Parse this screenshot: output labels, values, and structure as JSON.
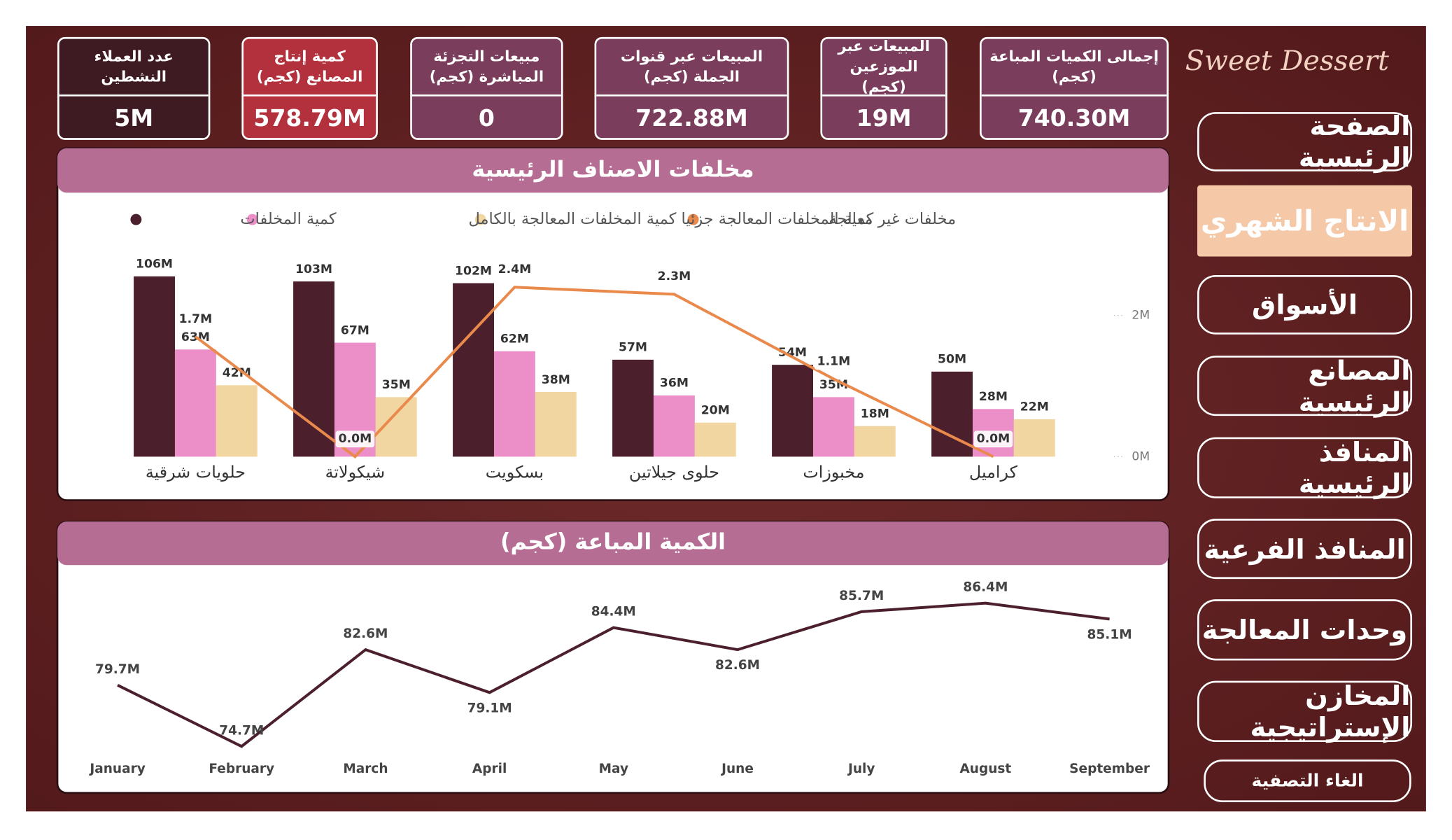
{
  "brand": "Sweet Dessert",
  "nav": [
    "الصفحة الرئيسية",
    "الانتاج الشهري",
    "الأسواق",
    "المصانع الرئيسية",
    "المنافذ الرئيسية",
    "المنافذ الفرعية",
    "وحدات المعالجة",
    "المخازن الإستراتيجية",
    "الغاء التصفية"
  ],
  "kpis": [
    {
      "label": "إجمالى الكميات المباعة (كجم)",
      "value": "740.30M",
      "color": "#7a3d5c"
    },
    {
      "label": "المبيعات عبر الموزعين (كجم)",
      "value": "19M",
      "color": "#7a3d5c"
    },
    {
      "label": "المبيعات عبر قنوات الجملة (كجم)",
      "value": "722.88M",
      "color": "#7a3d5c"
    },
    {
      "label": "مبيعات التجزئة المباشرة (كجم)",
      "value": "0",
      "color": "#7a3d5c"
    },
    {
      "label": "كمية إنتاج المصانع (كجم)",
      "value": "578.79M",
      "color": "#b3303d"
    },
    {
      "label": "عدد العملاء النشطين",
      "value": "5M",
      "color": "#3e1a23"
    }
  ],
  "chart_data": [
    {
      "type": "bar",
      "title": "مخلفات الاصناف الرئيسية",
      "categories": [
        "حلويات شرقية",
        "شيكولاتة",
        "بسكويت",
        "حلوى جيلاتين",
        "مخبوزات",
        "كراميل"
      ],
      "series": [
        {
          "name": "كمية المخلفات",
          "color": "#4b1f2c",
          "values": [
            106000000,
            103000000,
            102000000,
            57000000,
            54000000,
            50000000
          ],
          "value_labels": [
            "106M",
            "103M",
            "102M",
            "57M",
            "54M",
            "50M"
          ]
        },
        {
          "name": "كمية المخلفات المعالجة بالكامل",
          "color": "#ec8fc9",
          "values": [
            63000000,
            67000000,
            62000000,
            36000000,
            35000000,
            28000000
          ],
          "value_labels": [
            "63M",
            "67M",
            "62M",
            "36M",
            "35M",
            "28M"
          ]
        },
        {
          "name": "كمية المخلفات المعالجة جزئيا",
          "color": "#f2d6a2",
          "values": [
            42000000,
            35000000,
            38000000,
            20000000,
            18000000,
            22000000
          ],
          "value_labels": [
            "42M",
            "35M",
            "38M",
            "20M",
            "18M",
            "22M"
          ]
        },
        {
          "name": "مخلفات غير معالجة",
          "color": "#e98a4c",
          "type": "line",
          "axis": "y2",
          "values": [
            1700000,
            0,
            2400000,
            2300000,
            1100000,
            0
          ],
          "value_labels": [
            "1.7M",
            "0.0M",
            "2.4M",
            "2.3M",
            "1.1M",
            "0.0M"
          ]
        }
      ],
      "ylim": [
        0,
        110000000
      ],
      "y2lim": [
        0,
        2650000
      ],
      "y2ticks": [
        {
          "value": 0,
          "label": "0M"
        },
        {
          "value": 2000000,
          "label": "2M"
        }
      ],
      "legend": "top-left"
    },
    {
      "type": "line",
      "title": "الكمية المباعة (كجم)",
      "categories": [
        "January",
        "February",
        "March",
        "April",
        "May",
        "June",
        "July",
        "August",
        "September"
      ],
      "values": [
        79700000,
        74700000,
        82600000,
        79100000,
        84400000,
        82600000,
        85700000,
        86400000,
        85100000
      ],
      "value_labels": [
        "79.7M",
        "74.7M",
        "82.6M",
        "79.1M",
        "84.4M",
        "82.6M",
        "85.7M",
        "86.4M",
        "85.1M"
      ],
      "color": "#4b1f2c",
      "ylim": [
        74000000,
        88000000
      ]
    }
  ]
}
